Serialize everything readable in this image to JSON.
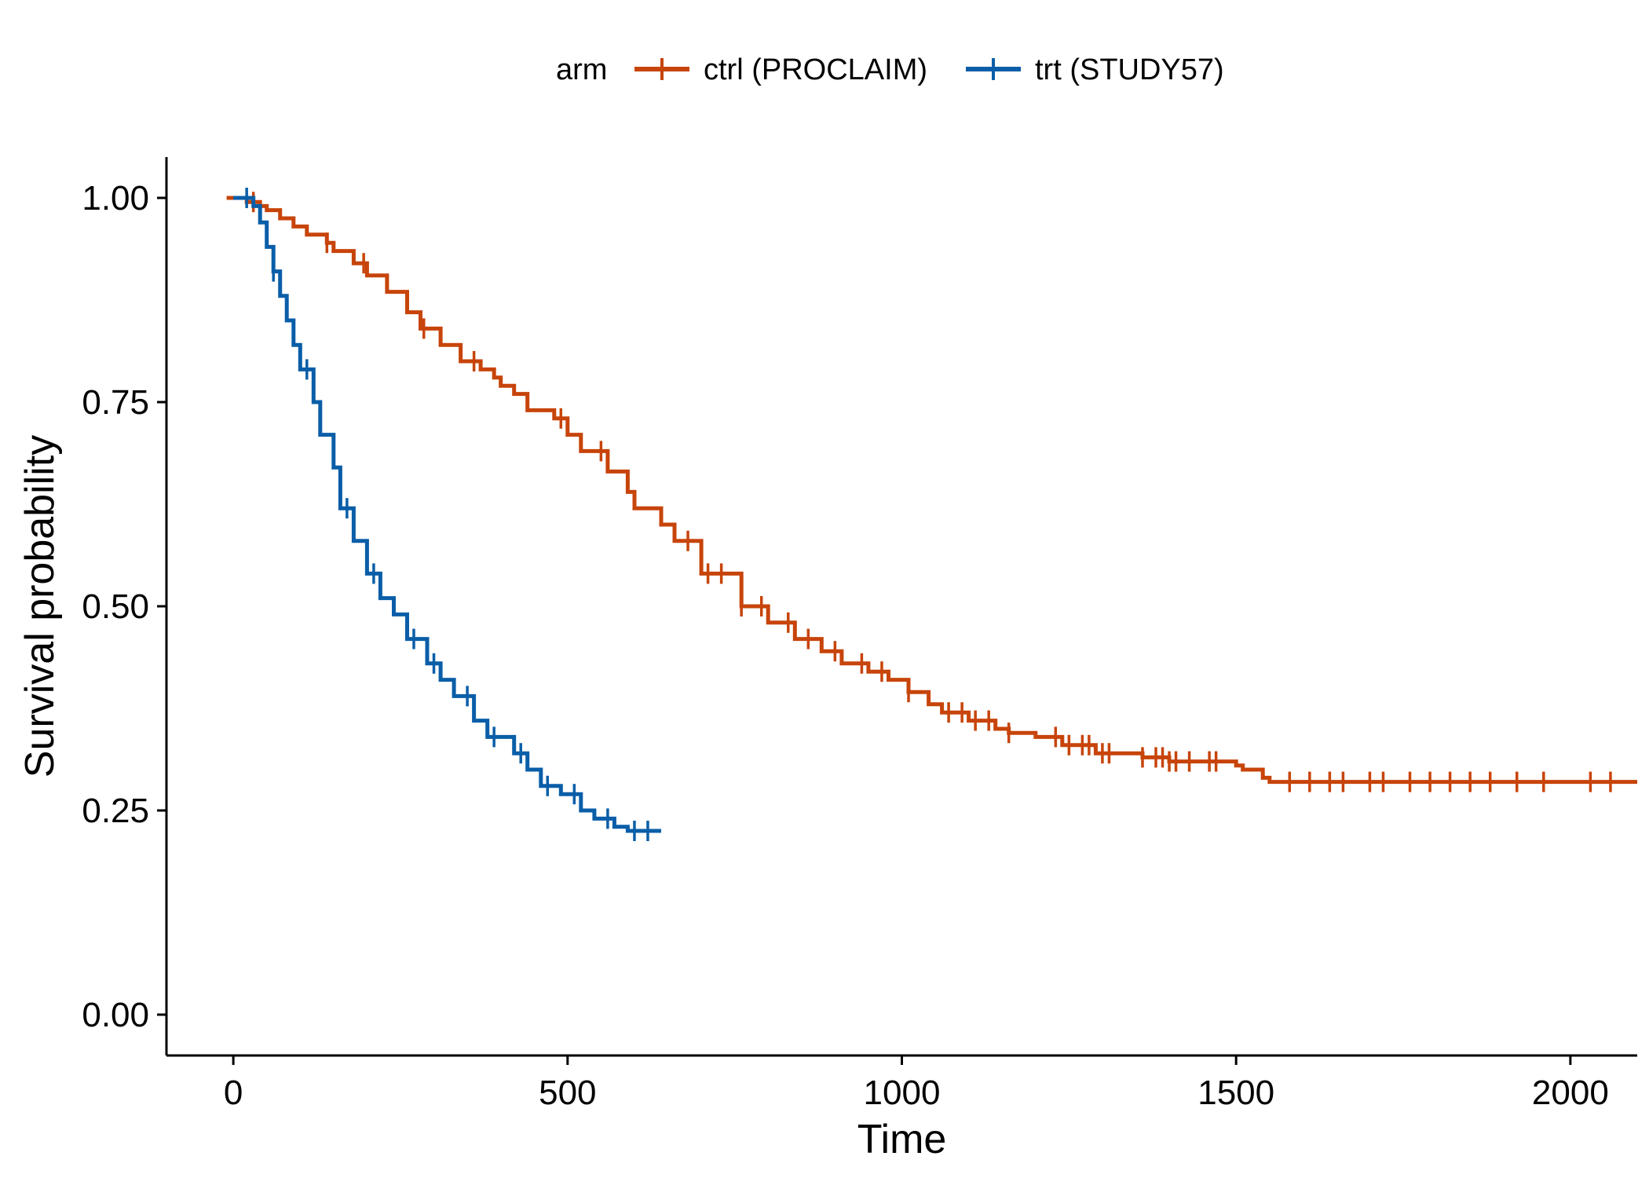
{
  "chart_data": {
    "type": "line",
    "subtype": "kaplan-meier-step",
    "xlabel": "Time",
    "ylabel": "Survival probability",
    "xlim": [
      -100,
      2100
    ],
    "ylim": [
      -0.05,
      1.05
    ],
    "x_ticks": [
      0,
      500,
      1000,
      1500,
      2000
    ],
    "x_tick_labels": [
      "0",
      "500",
      "1000",
      "1500",
      "2000"
    ],
    "y_ticks": [
      0,
      0.25,
      0.5,
      0.75,
      1.0
    ],
    "y_tick_labels": [
      "0.00",
      "0.25",
      "0.50",
      "0.75",
      "1.00"
    ],
    "grid": false,
    "legend": {
      "title": "arm",
      "placement": "top",
      "entries": [
        "ctrl (PROCLAIM)",
        "trt (STUDY57)"
      ]
    },
    "series": [
      {
        "name": "ctrl (PROCLAIM)",
        "color": "#C7440A",
        "x": [
          -10,
          20,
          40,
          50,
          70,
          90,
          110,
          140,
          150,
          180,
          200,
          230,
          260,
          280,
          310,
          340,
          370,
          390,
          400,
          420,
          440,
          480,
          500,
          520,
          560,
          590,
          600,
          640,
          660,
          700,
          760,
          800,
          840,
          880,
          910,
          950,
          980,
          1010,
          1040,
          1060,
          1100,
          1140,
          1160,
          1200,
          1240,
          1290,
          1360,
          1400,
          1500,
          1510,
          1540,
          1550,
          2100
        ],
        "y": [
          1.0,
          0.995,
          0.99,
          0.985,
          0.975,
          0.965,
          0.955,
          0.945,
          0.935,
          0.92,
          0.905,
          0.885,
          0.86,
          0.84,
          0.82,
          0.8,
          0.79,
          0.78,
          0.77,
          0.76,
          0.74,
          0.73,
          0.71,
          0.69,
          0.665,
          0.64,
          0.62,
          0.6,
          0.58,
          0.54,
          0.5,
          0.48,
          0.46,
          0.445,
          0.43,
          0.42,
          0.41,
          0.395,
          0.38,
          0.37,
          0.36,
          0.35,
          0.345,
          0.34,
          0.33,
          0.32,
          0.315,
          0.31,
          0.305,
          0.3,
          0.29,
          0.285,
          0.285
        ],
        "censor_x": [
          30,
          140,
          195,
          285,
          360,
          490,
          550,
          680,
          710,
          730,
          760,
          790,
          830,
          860,
          900,
          940,
          970,
          1010,
          1070,
          1090,
          1110,
          1130,
          1160,
          1230,
          1250,
          1270,
          1280,
          1300,
          1310,
          1360,
          1380,
          1390,
          1400,
          1410,
          1430,
          1460,
          1470,
          1580,
          1610,
          1640,
          1660,
          1700,
          1720,
          1760,
          1790,
          1820,
          1850,
          1880,
          1920,
          1960,
          2030,
          2060
        ]
      },
      {
        "name": "trt (STUDY57)",
        "color": "#0A5EA8",
        "x": [
          0,
          30,
          40,
          50,
          60,
          70,
          80,
          90,
          100,
          120,
          130,
          150,
          160,
          180,
          200,
          220,
          240,
          260,
          290,
          310,
          330,
          360,
          380,
          420,
          440,
          460,
          490,
          520,
          540,
          570,
          590,
          640
        ],
        "y": [
          1.0,
          0.99,
          0.97,
          0.94,
          0.91,
          0.88,
          0.85,
          0.82,
          0.79,
          0.75,
          0.71,
          0.67,
          0.62,
          0.58,
          0.54,
          0.51,
          0.49,
          0.46,
          0.43,
          0.41,
          0.39,
          0.36,
          0.34,
          0.32,
          0.3,
          0.28,
          0.27,
          0.25,
          0.24,
          0.23,
          0.225,
          0.225
        ],
        "censor_x": [
          20,
          60,
          110,
          170,
          210,
          270,
          300,
          350,
          390,
          430,
          470,
          510,
          560,
          600,
          620
        ]
      }
    ]
  }
}
